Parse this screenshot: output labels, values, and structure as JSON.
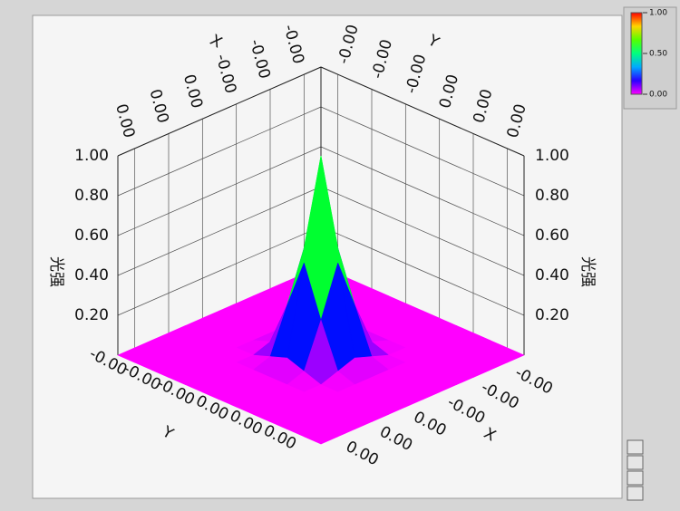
{
  "chart_data": {
    "type": "surface3d",
    "x_label": "X",
    "y_label": "Y",
    "z_label": "光强",
    "x": [
      -0.003,
      -0.0025,
      -0.002,
      -0.0015,
      -0.001,
      -0.0005,
      0,
      0.0005,
      0.001,
      0.0015,
      0.002,
      0.0025,
      0.003
    ],
    "y": [
      -0.003,
      -0.0025,
      -0.002,
      -0.0015,
      -0.001,
      -0.0005,
      0,
      0.0005,
      0.001,
      0.0015,
      0.002,
      0.0025,
      0.003
    ],
    "z": [
      [
        0,
        0,
        0,
        0,
        0,
        0,
        0,
        0,
        0,
        0,
        0,
        0,
        0
      ],
      [
        0,
        0,
        0,
        0,
        0,
        0,
        0,
        0,
        0,
        0,
        0,
        0,
        0
      ],
      [
        0,
        0,
        0,
        0,
        0,
        0,
        0,
        0,
        0,
        0,
        0,
        0,
        0
      ],
      [
        0,
        0,
        0,
        0,
        0,
        0,
        0,
        0,
        0,
        0,
        0,
        0,
        0
      ],
      [
        0,
        0,
        0,
        0,
        0,
        0.03,
        0.06,
        0.03,
        0,
        0,
        0,
        0,
        0
      ],
      [
        0,
        0,
        0,
        0,
        0.03,
        0.25,
        0.5,
        0.25,
        0.03,
        0,
        0,
        0,
        0
      ],
      [
        0,
        0,
        0,
        0,
        0.06,
        0.5,
        1,
        0.5,
        0.06,
        0,
        0,
        0,
        0
      ],
      [
        0,
        0,
        0,
        0,
        0.03,
        0.25,
        0.5,
        0.25,
        0.03,
        0,
        0,
        0,
        0
      ],
      [
        0,
        0,
        0,
        0,
        0,
        0.03,
        0.06,
        0.03,
        0,
        0,
        0,
        0,
        0
      ],
      [
        0,
        0,
        0,
        0,
        0,
        0,
        0,
        0,
        0,
        0,
        0,
        0,
        0
      ],
      [
        0,
        0,
        0,
        0,
        0,
        0,
        0,
        0,
        0,
        0,
        0,
        0,
        0
      ],
      [
        0,
        0,
        0,
        0,
        0,
        0,
        0,
        0,
        0,
        0,
        0,
        0,
        0
      ],
      [
        0,
        0,
        0,
        0,
        0,
        0,
        0,
        0,
        0,
        0,
        0,
        0,
        0
      ]
    ],
    "xlim": [
      -0.003,
      0.003
    ],
    "ylim": [
      -0.003,
      0.003
    ],
    "zlim": [
      0,
      1
    ],
    "xticks": [
      {
        "value": -0.0025,
        "label": "-0.00"
      },
      {
        "value": -0.0015,
        "label": "-0.00"
      },
      {
        "value": -0.0005,
        "label": "-0.00"
      },
      {
        "value": 0.0005,
        "label": "0.00"
      },
      {
        "value": 0.0015,
        "label": "0.00"
      },
      {
        "value": 0.0025,
        "label": "0.00"
      }
    ],
    "yticks": [
      {
        "value": -0.0025,
        "label": "-0.00"
      },
      {
        "value": -0.0015,
        "label": "-0.00"
      },
      {
        "value": -0.0005,
        "label": "-0.00"
      },
      {
        "value": 0.0005,
        "label": "0.00"
      },
      {
        "value": 0.0015,
        "label": "0.00"
      },
      {
        "value": 0.0025,
        "label": "0.00"
      }
    ],
    "zticks": [
      {
        "value": 0.2,
        "label": "0.20"
      },
      {
        "value": 0.4,
        "label": "0.40"
      },
      {
        "value": 0.6,
        "label": "0.60"
      },
      {
        "value": 0.8,
        "label": "0.80"
      },
      {
        "value": 1,
        "label": "1.00"
      }
    ],
    "grid": true,
    "colorbar": {
      "ticks": [
        {
          "value": 1,
          "label": "1.00"
        },
        {
          "value": 0.5,
          "label": "0.50"
        },
        {
          "value": 0,
          "label": "0.00"
        }
      ]
    }
  }
}
